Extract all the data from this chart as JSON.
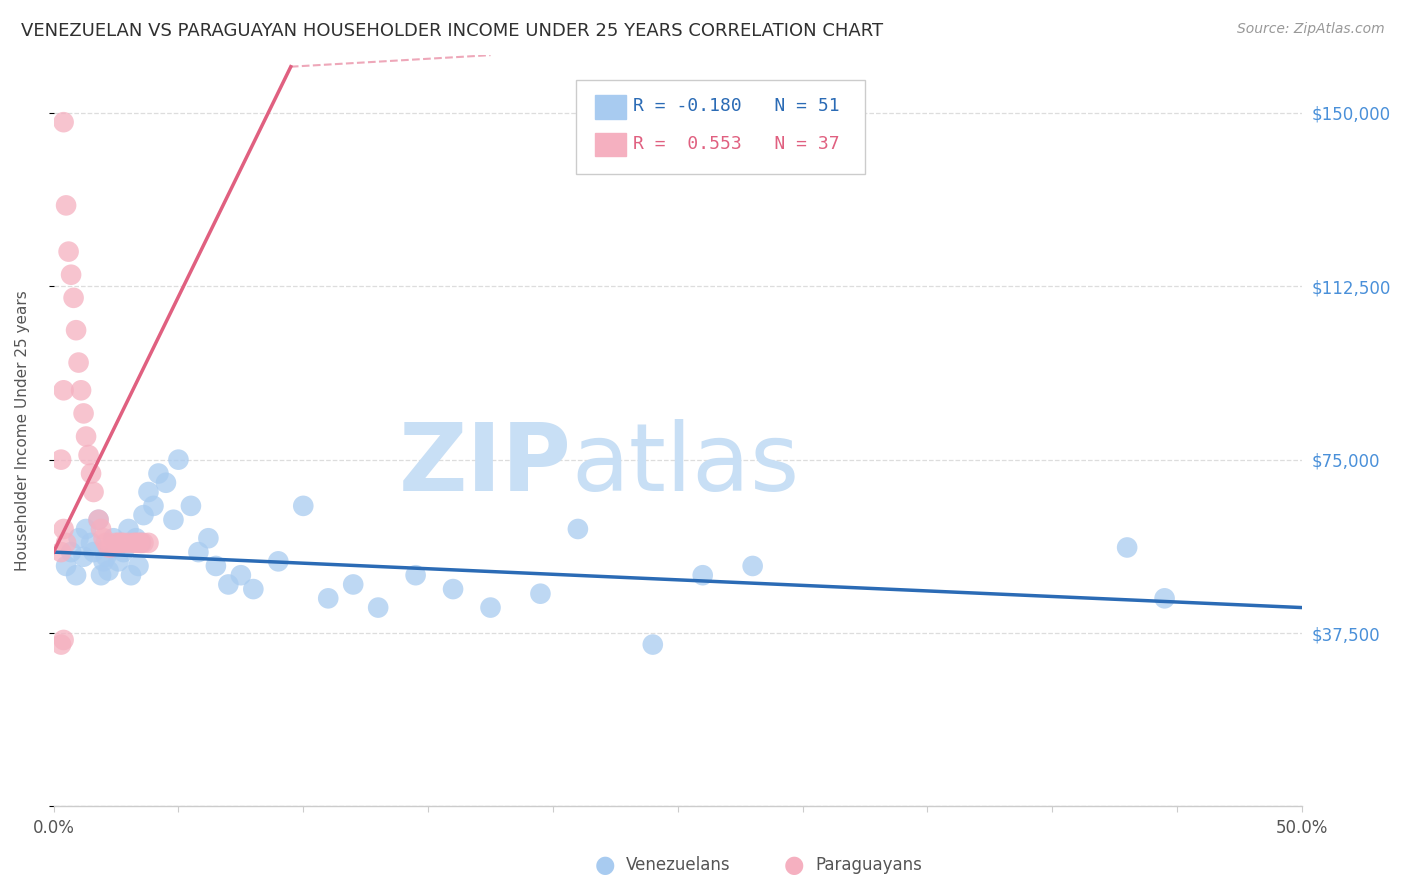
{
  "title": "VENEZUELAN VS PARAGUAYAN HOUSEHOLDER INCOME UNDER 25 YEARS CORRELATION CHART",
  "source": "Source: ZipAtlas.com",
  "ylabel": "Householder Income Under 25 years",
  "xlim": [
    0.0,
    0.5
  ],
  "ylim": [
    0,
    162500
  ],
  "yticks": [
    0,
    37500,
    75000,
    112500,
    150000
  ],
  "ytick_labels": [
    "",
    "$37,500",
    "$75,000",
    "$112,500",
    "$150,000"
  ],
  "blue_R": -0.18,
  "blue_N": 51,
  "pink_R": 0.553,
  "pink_N": 37,
  "blue_dot_color": "#A8CBF0",
  "pink_dot_color": "#F5B0C0",
  "blue_line_color": "#2B6BB5",
  "pink_line_color": "#E06080",
  "background_color": "#FFFFFF",
  "grid_color": "#DDDDDD",
  "title_color": "#303030",
  "axis_label_color": "#555555",
  "right_tick_color": "#4A90D9",
  "venezuelan_x": [
    0.005,
    0.007,
    0.009,
    0.01,
    0.012,
    0.013,
    0.015,
    0.016,
    0.018,
    0.019,
    0.02,
    0.021,
    0.022,
    0.024,
    0.025,
    0.026,
    0.028,
    0.03,
    0.031,
    0.033,
    0.034,
    0.035,
    0.036,
    0.038,
    0.04,
    0.042,
    0.045,
    0.048,
    0.05,
    0.055,
    0.058,
    0.062,
    0.065,
    0.07,
    0.075,
    0.08,
    0.09,
    0.1,
    0.11,
    0.12,
    0.13,
    0.145,
    0.16,
    0.175,
    0.195,
    0.21,
    0.24,
    0.26,
    0.28,
    0.43,
    0.445
  ],
  "venezuelan_y": [
    52000,
    55000,
    50000,
    58000,
    54000,
    60000,
    57000,
    55000,
    62000,
    50000,
    53000,
    54000,
    51000,
    58000,
    56000,
    53000,
    55000,
    60000,
    50000,
    58000,
    52000,
    57000,
    63000,
    68000,
    65000,
    72000,
    70000,
    62000,
    75000,
    65000,
    55000,
    58000,
    52000,
    48000,
    50000,
    47000,
    53000,
    65000,
    45000,
    48000,
    43000,
    50000,
    47000,
    43000,
    46000,
    60000,
    35000,
    50000,
    52000,
    56000,
    45000
  ],
  "paraguayan_x": [
    0.004,
    0.005,
    0.006,
    0.007,
    0.008,
    0.009,
    0.01,
    0.011,
    0.012,
    0.013,
    0.014,
    0.015,
    0.016,
    0.018,
    0.019,
    0.02,
    0.021,
    0.022,
    0.023,
    0.025,
    0.026,
    0.027,
    0.028,
    0.03,
    0.032,
    0.033,
    0.034,
    0.035,
    0.036,
    0.038,
    0.003,
    0.004,
    0.003,
    0.004,
    0.005,
    0.003,
    0.004
  ],
  "paraguayan_y": [
    148000,
    130000,
    120000,
    115000,
    110000,
    103000,
    96000,
    90000,
    85000,
    80000,
    76000,
    72000,
    68000,
    62000,
    60000,
    58000,
    57000,
    56000,
    56000,
    57000,
    57000,
    57000,
    57000,
    57000,
    57000,
    57000,
    57000,
    57000,
    57000,
    57000,
    75000,
    90000,
    55000,
    60000,
    57000,
    35000,
    36000
  ]
}
